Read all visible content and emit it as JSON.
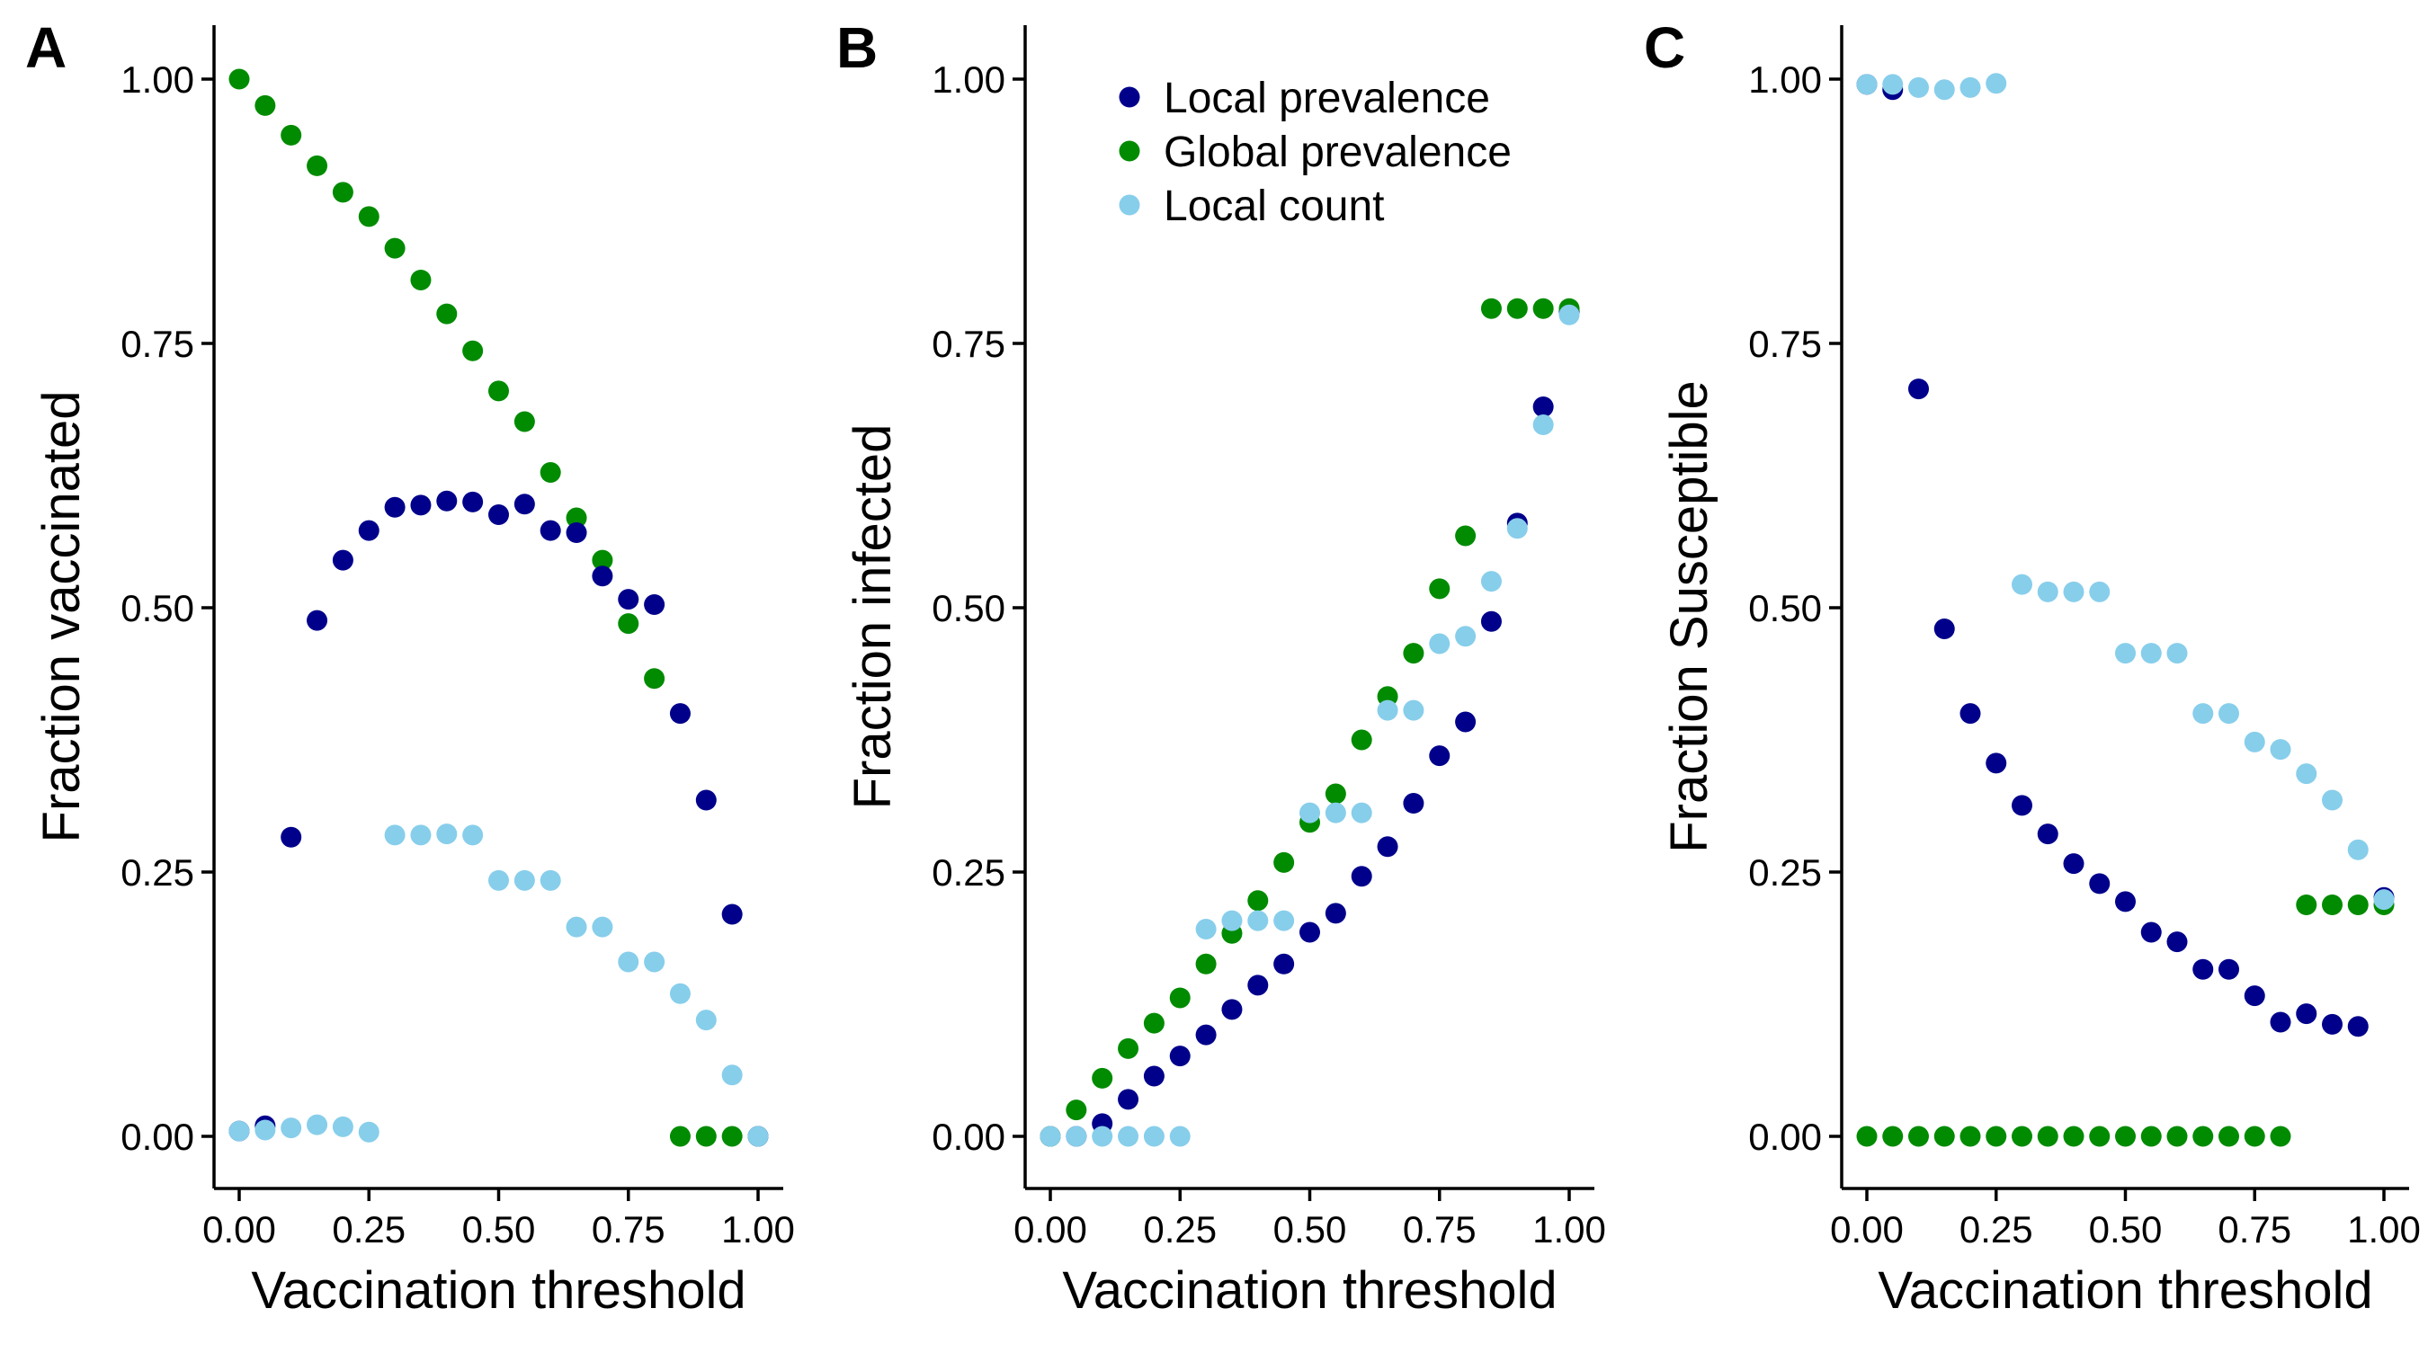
{
  "colors": {
    "local_prevalence": "#00008B",
    "global_prevalence": "#008B00",
    "local_count": "#87CEEB"
  },
  "legend": [
    {
      "key": "local_prevalence",
      "label": "Local prevalence"
    },
    {
      "key": "global_prevalence",
      "label": "Global prevalence"
    },
    {
      "key": "local_count",
      "label": "Local count"
    }
  ],
  "chart_data": [
    {
      "type": "scatter",
      "panel_label": "A",
      "xlabel": "Vaccination threshold",
      "ylabel": "Fraction vaccinated",
      "xlim": [
        0,
        1
      ],
      "ylim": [
        0,
        1
      ],
      "x_ticks": [
        0,
        0.25,
        0.5,
        0.75,
        1
      ],
      "x_tick_labels": [
        "0.00",
        "0.25",
        "0.50",
        "0.75",
        "1.00"
      ],
      "y_ticks": [
        0,
        0.25,
        0.5,
        0.75,
        1
      ],
      "y_tick_labels": [
        "0.00",
        "0.25",
        "0.50",
        "0.75",
        "1.00"
      ],
      "legend_position": "none",
      "series": [
        {
          "key": "global_prevalence",
          "name": "Global prevalence",
          "x": [
            0,
            0.05,
            0.1,
            0.15,
            0.2,
            0.25,
            0.3,
            0.35,
            0.4,
            0.45,
            0.5,
            0.55,
            0.6,
            0.65,
            0.7,
            0.75,
            0.8,
            0.85,
            0.9,
            0.95,
            1.0
          ],
          "y": [
            1.0,
            0.975,
            0.947,
            0.918,
            0.893,
            0.87,
            0.84,
            0.81,
            0.778,
            0.743,
            0.705,
            0.676,
            0.628,
            0.585,
            0.545,
            0.485,
            0.433,
            0.0,
            0.0,
            0.0,
            0.0
          ]
        },
        {
          "key": "local_prevalence",
          "name": "Local prevalence",
          "x": [
            0,
            0.05,
            0.1,
            0.15,
            0.2,
            0.25,
            0.3,
            0.35,
            0.4,
            0.45,
            0.5,
            0.55,
            0.6,
            0.65,
            0.7,
            0.75,
            0.8,
            0.85,
            0.9,
            0.95,
            1.0
          ],
          "y": [
            0.005,
            0.01,
            0.283,
            0.488,
            0.545,
            0.573,
            0.595,
            0.597,
            0.601,
            0.6,
            0.588,
            0.598,
            0.573,
            0.571,
            0.53,
            0.508,
            0.503,
            0.4,
            0.318,
            0.21,
            0.0
          ]
        },
        {
          "key": "local_count",
          "name": "Local count",
          "x": [
            0,
            0.05,
            0.1,
            0.15,
            0.2,
            0.25,
            0.3,
            0.35,
            0.4,
            0.45,
            0.5,
            0.55,
            0.6,
            0.65,
            0.7,
            0.75,
            0.8,
            0.85,
            0.9,
            0.95,
            1.0
          ],
          "y": [
            0.005,
            0.006,
            0.008,
            0.011,
            0.009,
            0.004,
            0.285,
            0.285,
            0.286,
            0.285,
            0.242,
            0.242,
            0.242,
            0.198,
            0.198,
            0.165,
            0.165,
            0.135,
            0.11,
            0.058,
            0.0
          ]
        }
      ]
    },
    {
      "type": "scatter",
      "panel_label": "B",
      "xlabel": "Vaccination threshold",
      "ylabel": "Fraction infected",
      "xlim": [
        0,
        1
      ],
      "ylim": [
        0,
        1
      ],
      "x_ticks": [
        0,
        0.25,
        0.5,
        0.75,
        1
      ],
      "x_tick_labels": [
        "0.00",
        "0.25",
        "0.50",
        "0.75",
        "1.00"
      ],
      "y_ticks": [
        0,
        0.25,
        0.5,
        0.75,
        1
      ],
      "y_tick_labels": [
        "0.00",
        "0.25",
        "0.50",
        "0.75",
        "1.00"
      ],
      "legend_position": "top",
      "series": [
        {
          "key": "local_prevalence",
          "name": "Local prevalence",
          "x": [
            0,
            0.05,
            0.1,
            0.15,
            0.2,
            0.25,
            0.3,
            0.35,
            0.4,
            0.45,
            0.5,
            0.55,
            0.6,
            0.65,
            0.7,
            0.75,
            0.8,
            0.85,
            0.9,
            0.95,
            1.0
          ],
          "y": [
            0.0,
            0.0,
            0.012,
            0.035,
            0.057,
            0.076,
            0.096,
            0.12,
            0.143,
            0.163,
            0.193,
            0.211,
            0.246,
            0.274,
            0.315,
            0.36,
            0.392,
            0.487,
            0.58,
            0.69,
            0.78
          ]
        },
        {
          "key": "global_prevalence",
          "name": "Global prevalence",
          "x": [
            0,
            0.05,
            0.1,
            0.15,
            0.2,
            0.25,
            0.3,
            0.35,
            0.4,
            0.45,
            0.5,
            0.55,
            0.6,
            0.65,
            0.7,
            0.75,
            0.8,
            0.85,
            0.9,
            0.95,
            1.0
          ],
          "y": [
            0.0,
            0.025,
            0.055,
            0.083,
            0.107,
            0.131,
            0.163,
            0.192,
            0.223,
            0.259,
            0.297,
            0.324,
            0.375,
            0.416,
            0.457,
            0.518,
            0.568,
            0.783,
            0.783,
            0.783,
            0.783
          ]
        },
        {
          "key": "local_count",
          "name": "Local count",
          "x": [
            0,
            0.05,
            0.1,
            0.15,
            0.2,
            0.25,
            0.3,
            0.35,
            0.4,
            0.45,
            0.5,
            0.55,
            0.6,
            0.65,
            0.7,
            0.75,
            0.8,
            0.85,
            0.9,
            0.95,
            1.0
          ],
          "y": [
            0.0,
            0.0,
            0.0,
            0.0,
            0.0,
            0.0,
            0.196,
            0.204,
            0.204,
            0.204,
            0.306,
            0.306,
            0.306,
            0.403,
            0.403,
            0.466,
            0.473,
            0.525,
            0.575,
            0.673,
            0.777
          ]
        }
      ]
    },
    {
      "type": "scatter",
      "panel_label": "C",
      "xlabel": "Vaccination threshold",
      "ylabel": "Fraction Susceptible",
      "xlim": [
        0,
        1
      ],
      "ylim": [
        0,
        1
      ],
      "x_ticks": [
        0,
        0.25,
        0.5,
        0.75,
        1
      ],
      "x_tick_labels": [
        "0.00",
        "0.25",
        "0.50",
        "0.75",
        "1.00"
      ],
      "y_ticks": [
        0,
        0.25,
        0.5,
        0.75,
        1
      ],
      "y_tick_labels": [
        "0.00",
        "0.25",
        "0.50",
        "0.75",
        "1.00"
      ],
      "legend_position": "none",
      "series": [
        {
          "key": "local_prevalence",
          "name": "Local prevalence",
          "x": [
            0,
            0.05,
            0.1,
            0.15,
            0.2,
            0.25,
            0.3,
            0.35,
            0.4,
            0.45,
            0.5,
            0.55,
            0.6,
            0.65,
            0.7,
            0.75,
            0.8,
            0.85,
            0.9,
            0.95,
            1.0
          ],
          "y": [
            0.995,
            0.99,
            0.707,
            0.48,
            0.4,
            0.353,
            0.313,
            0.286,
            0.258,
            0.239,
            0.222,
            0.193,
            0.184,
            0.158,
            0.158,
            0.133,
            0.108,
            0.116,
            0.106,
            0.104,
            0.226
          ]
        },
        {
          "key": "global_prevalence",
          "name": "Global prevalence",
          "x": [
            0,
            0.05,
            0.1,
            0.15,
            0.2,
            0.25,
            0.3,
            0.35,
            0.4,
            0.45,
            0.5,
            0.55,
            0.6,
            0.65,
            0.7,
            0.75,
            0.8,
            0.85,
            0.9,
            0.95,
            1.0
          ],
          "y": [
            0.0,
            0.0,
            0.0,
            0.0,
            0.0,
            0.0,
            0.0,
            0.0,
            0.0,
            0.0,
            0.0,
            0.0,
            0.0,
            0.0,
            0.0,
            0.0,
            0.0,
            0.219,
            0.219,
            0.219,
            0.219
          ]
        },
        {
          "key": "local_count",
          "name": "Local count",
          "x": [
            0,
            0.05,
            0.1,
            0.15,
            0.2,
            0.25,
            0.3,
            0.35,
            0.4,
            0.45,
            0.5,
            0.55,
            0.6,
            0.65,
            0.7,
            0.75,
            0.8,
            0.85,
            0.9,
            0.95,
            1.0
          ],
          "y": [
            0.995,
            0.995,
            0.992,
            0.99,
            0.992,
            0.996,
            0.522,
            0.515,
            0.515,
            0.515,
            0.457,
            0.457,
            0.457,
            0.4,
            0.4,
            0.373,
            0.366,
            0.343,
            0.318,
            0.271,
            0.224
          ]
        }
      ]
    }
  ]
}
